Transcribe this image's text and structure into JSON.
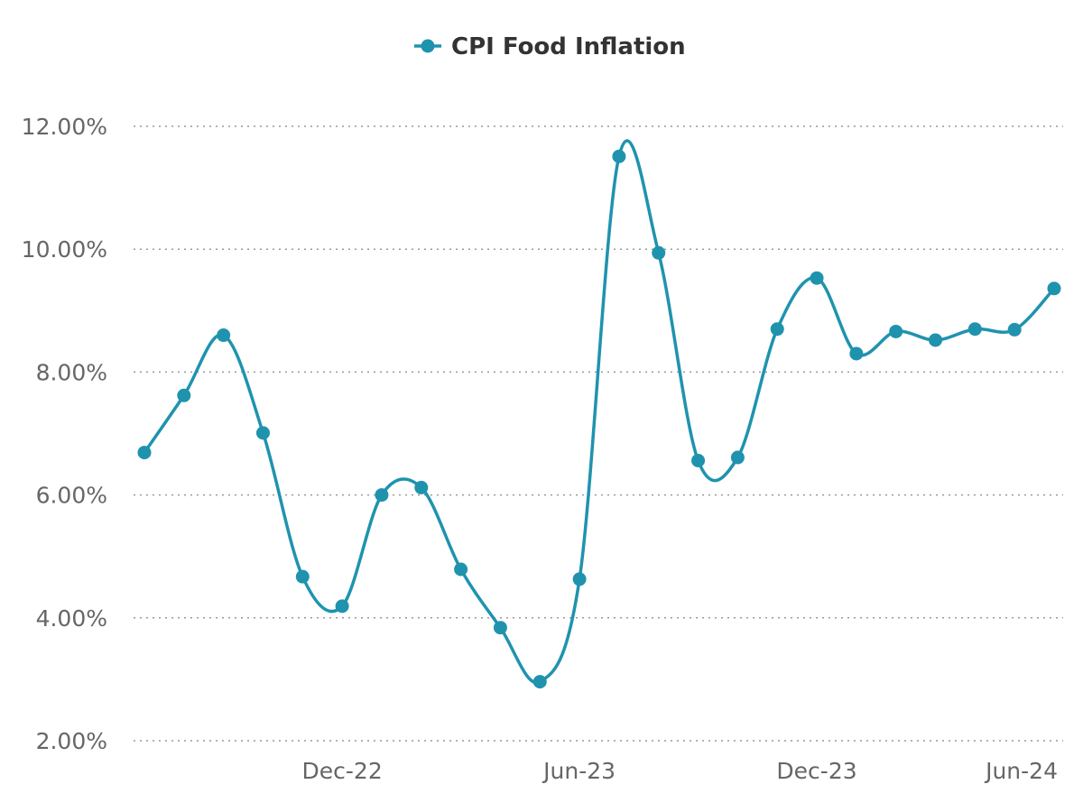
{
  "chart_data": {
    "type": "line",
    "title": "",
    "xlabel": "",
    "ylabel": "",
    "legend_position": "top-center",
    "grid": true,
    "ylim": [
      2,
      12
    ],
    "y_ticks": [
      "2.00%",
      "4.00%",
      "6.00%",
      "8.00%",
      "10.00%",
      "12.00%"
    ],
    "y_tick_values": [
      2,
      4,
      6,
      8,
      10,
      12
    ],
    "x_ticks": [
      {
        "label": "Dec-22",
        "index": 5
      },
      {
        "label": "Jun-23",
        "index": 11
      },
      {
        "label": "Dec-23",
        "index": 17
      },
      {
        "label": "Jun-24",
        "index": 24
      }
    ],
    "x": [
      "Jul-22",
      "Aug-22",
      "Sep-22",
      "Oct-22",
      "Nov-22",
      "Dec-22",
      "Jan-23",
      "Feb-23",
      "Mar-23",
      "Apr-23",
      "May-23",
      "Jun-23",
      "Jul-23",
      "Aug-23",
      "Sep-23",
      "Oct-23",
      "Nov-23",
      "Dec-23",
      "Jan-24",
      "Feb-24",
      "Mar-24",
      "Apr-24",
      "May-24",
      "Jun-24"
    ],
    "series": [
      {
        "name": "CPI Food Inflation",
        "color": "#1f93ae",
        "values": [
          6.69,
          7.62,
          8.6,
          7.01,
          4.67,
          4.19,
          6.0,
          6.12,
          4.79,
          3.84,
          2.96,
          4.63,
          11.51,
          9.94,
          6.56,
          6.61,
          8.7,
          9.53,
          8.3,
          8.66,
          8.52,
          8.7,
          8.69,
          9.36
        ]
      }
    ]
  }
}
